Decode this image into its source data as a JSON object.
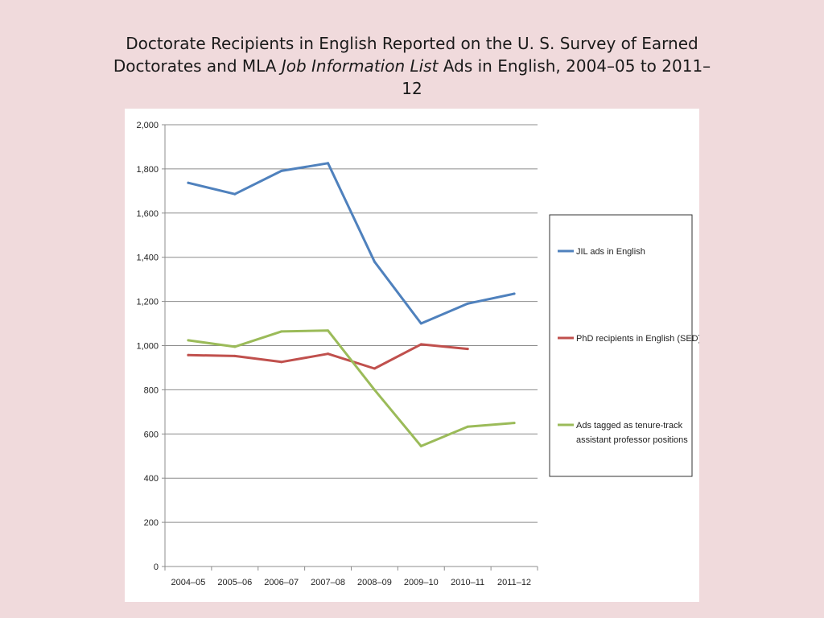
{
  "title": {
    "part1": "Doctorate Recipients in English Reported on the U. S. Survey of Earned Doctorates and MLA ",
    "italic": "Job Information List",
    "part2": " Ads in English, 2004–05 to 2011–12"
  },
  "colors": {
    "background": "#f0dadc",
    "gridline": "#8c8c8c",
    "series": [
      "#4f81bd",
      "#c0504d",
      "#9bbb59"
    ]
  },
  "chart_data": {
    "type": "line",
    "categories": [
      "2004–05",
      "2005–06",
      "2006–07",
      "2007–08",
      "2008–09",
      "2009–10",
      "2010–11",
      "2011–12"
    ],
    "y_ticks": [
      "0",
      "200",
      "400",
      "600",
      "800",
      "1,000",
      "1,200",
      "1,400",
      "1,600",
      "1,800",
      "2,000"
    ],
    "ylim": [
      0,
      2000
    ],
    "grid": true,
    "legend_position": "right",
    "series": [
      {
        "name": "JIL ads in English",
        "legend_lines": [
          "JIL ads in English"
        ],
        "color": "#4f81bd",
        "values": [
          1737,
          1686,
          1791,
          1826,
          1380,
          1100,
          1190,
          1235
        ]
      },
      {
        "name": "PhD recipients in English (SED)",
        "legend_lines": [
          "PhD recipients in English (SED)"
        ],
        "color": "#c0504d",
        "values": [
          957,
          953,
          926,
          963,
          896,
          1006,
          985,
          null
        ]
      },
      {
        "name": "Ads tagged as tenure-track assistant professor positions",
        "legend_lines": [
          "Ads tagged as tenure-track",
          "assistant professor positions"
        ],
        "color": "#9bbb59",
        "values": [
          1024,
          995,
          1064,
          1068,
          800,
          545,
          633,
          650
        ]
      }
    ]
  }
}
